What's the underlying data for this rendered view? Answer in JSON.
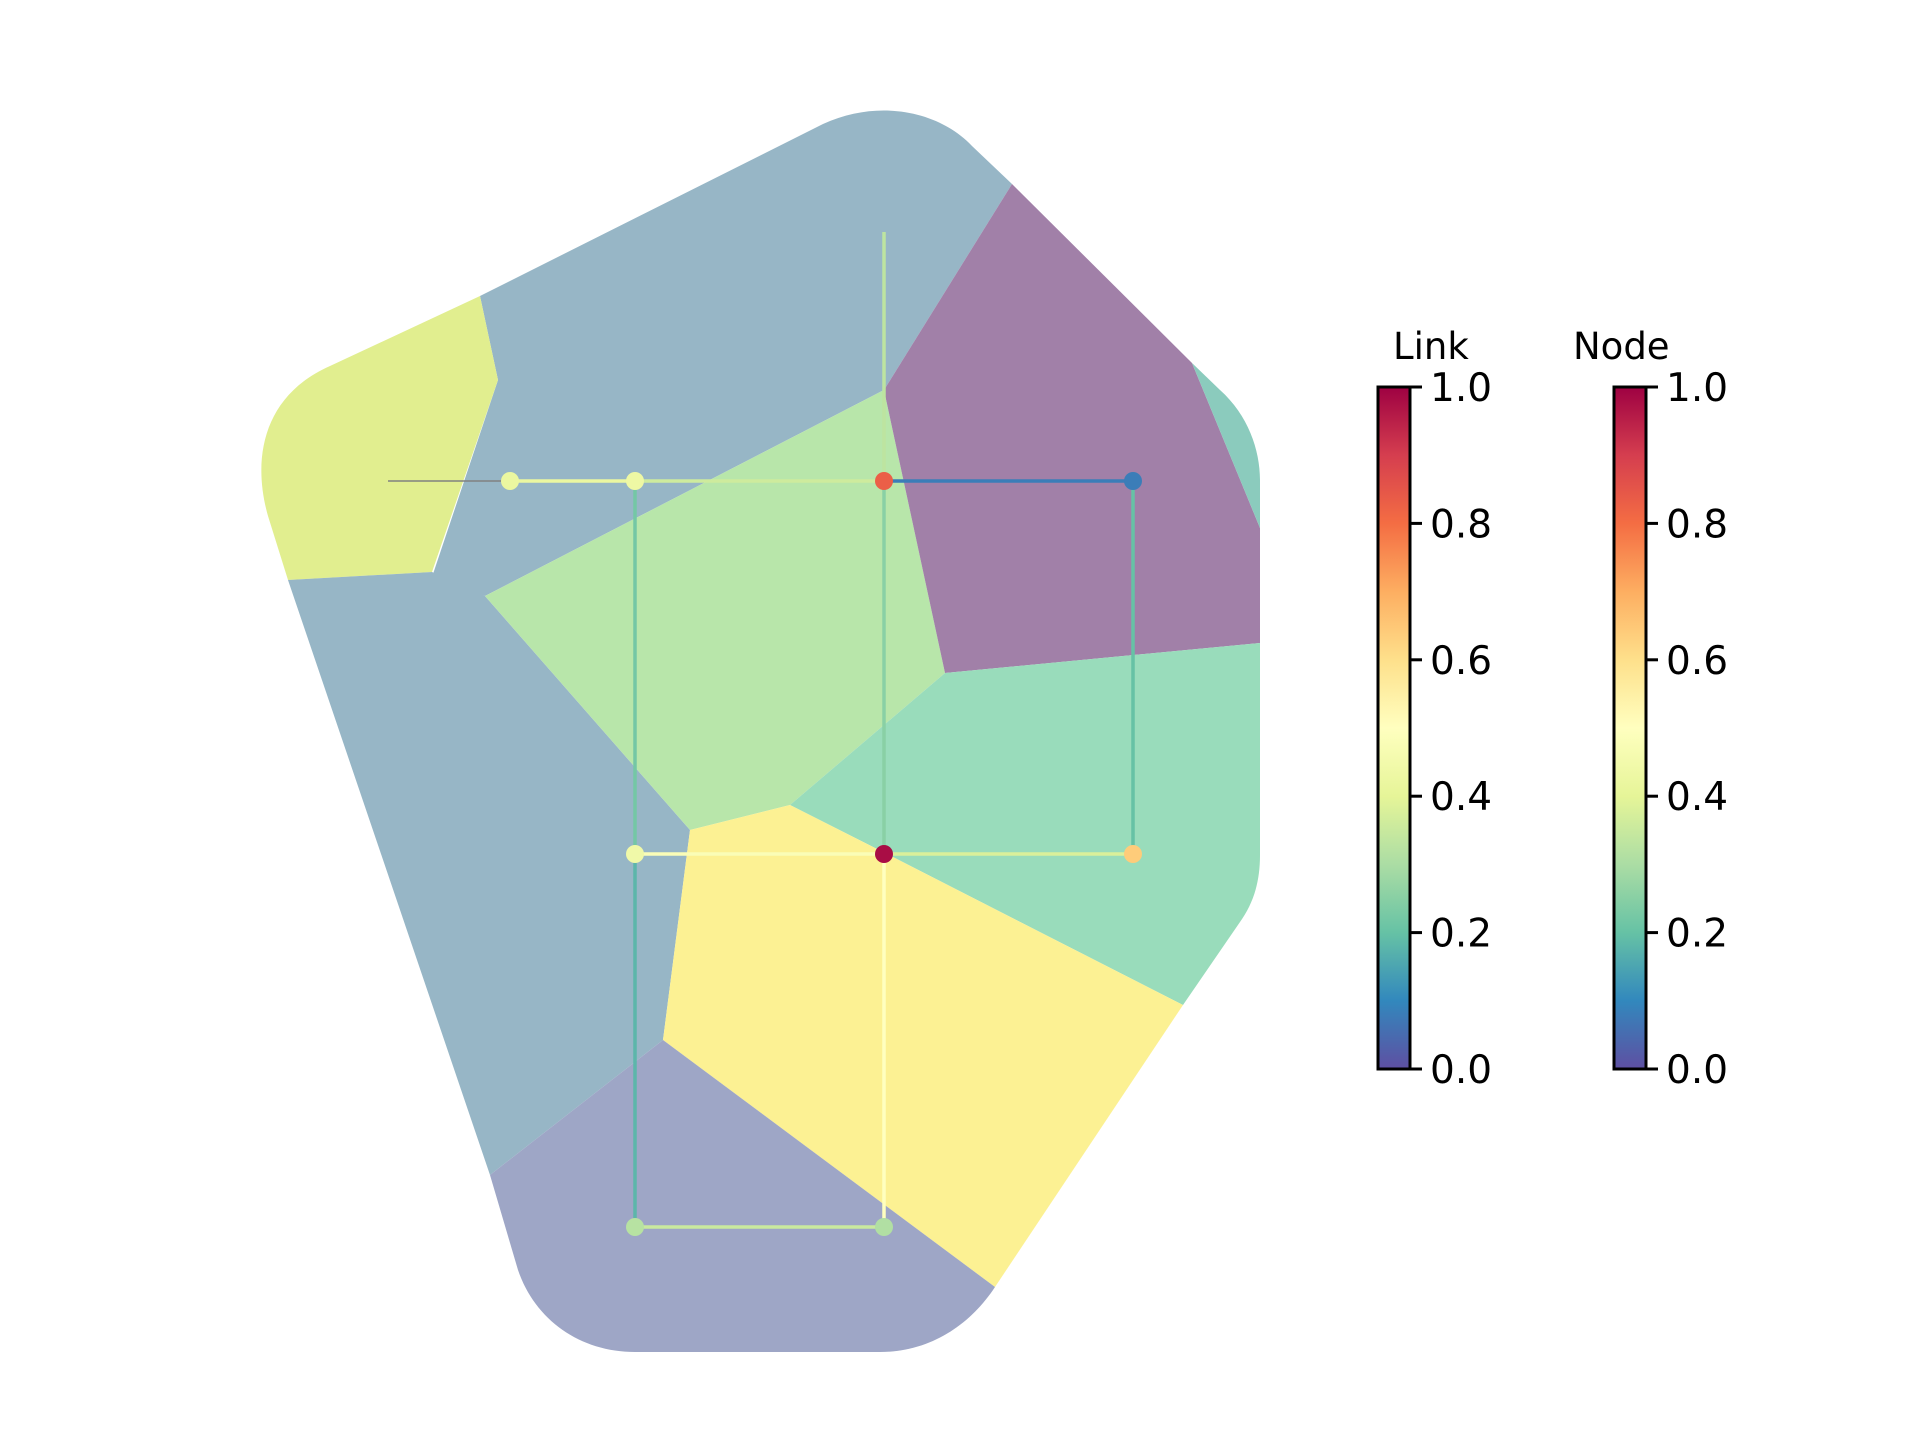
{
  "colorbars": [
    {
      "id": "link",
      "title": "Link",
      "ticks": [
        "0.0",
        "0.2",
        "0.4",
        "0.6",
        "0.8",
        "1.0"
      ]
    },
    {
      "id": "node",
      "title": "Node",
      "ticks": [
        "0.0",
        "0.2",
        "0.4",
        "0.6",
        "0.8",
        "1.0"
      ]
    }
  ],
  "colormap": {
    "name": "Spectral_r",
    "stops": [
      "#5e4fa2",
      "#3288bd",
      "#66c2a5",
      "#abdda4",
      "#e6f598",
      "#ffffbf",
      "#fee08b",
      "#fdae61",
      "#f46d43",
      "#d53e4f",
      "#9e0142"
    ]
  },
  "cell_colors": {
    "upper-blue": "#97b6c6",
    "upper-left-yellow": "#e1ee8f",
    "left-blue": "#97b6c6",
    "center-green": "#b8e6aa",
    "upper-right-purple": "#a180a8",
    "right-teal-sliver": "#8bcbbd",
    "right-teal": "#99dcbb",
    "center-yellow": "#fcf193",
    "bottom-purple": "#9ea6c6"
  },
  "network": {
    "nodes": [
      {
        "id": "n1",
        "value": 0.42
      },
      {
        "id": "n2",
        "value": 0.43
      },
      {
        "id": "n3",
        "value": 0.83
      },
      {
        "id": "n4",
        "value": 0.08
      },
      {
        "id": "n5",
        "value": 0.44
      },
      {
        "id": "n6",
        "value": 0.98
      },
      {
        "id": "n7",
        "value": 0.64
      },
      {
        "id": "n8",
        "value": 0.32
      },
      {
        "id": "n9",
        "value": 0.31
      }
    ],
    "links": [
      {
        "id": "l-reservoir",
        "value": null
      },
      {
        "id": "l1-2",
        "value": 0.42
      },
      {
        "id": "l2-3",
        "value": 0.36
      },
      {
        "id": "l3-4",
        "value": 0.08
      },
      {
        "id": "l3-top",
        "value": 0.33
      },
      {
        "id": "l3-6",
        "value": 0.25
      },
      {
        "id": "l2-5",
        "value": 0.22
      },
      {
        "id": "l4-7",
        "value": 0.2
      },
      {
        "id": "l5-6",
        "value": 0.48
      },
      {
        "id": "l6-7",
        "value": 0.38
      },
      {
        "id": "l5-8",
        "value": 0.18
      },
      {
        "id": "l6-9",
        "value": 0.5
      },
      {
        "id": "l8-9",
        "value": 0.35
      }
    ]
  }
}
